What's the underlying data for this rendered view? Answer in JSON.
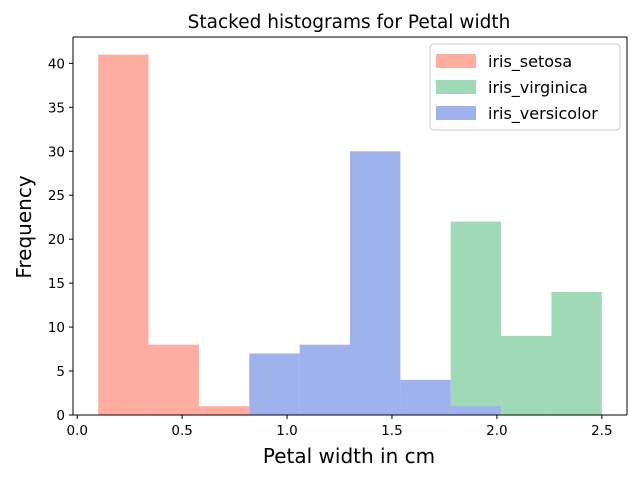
{
  "chart_data": {
    "type": "bar",
    "title": "Stacked histograms for Petal width",
    "xlabel": "Petal width in cm",
    "ylabel": "Frequency",
    "xlim": [
      -0.02,
      2.62
    ],
    "ylim": [
      0,
      43
    ],
    "xticks": [
      0.0,
      0.5,
      1.0,
      1.5,
      2.0,
      2.5
    ],
    "xtick_labels": [
      "0.0",
      "0.5",
      "1.0",
      "1.5",
      "2.0",
      "2.5"
    ],
    "yticks": [
      0,
      5,
      10,
      15,
      20,
      25,
      30,
      35,
      40
    ],
    "ytick_labels": [
      "0",
      "5",
      "10",
      "15",
      "20",
      "25",
      "30",
      "35",
      "40"
    ],
    "bin_edges": [
      0.1,
      0.34,
      0.58,
      0.82,
      1.06,
      1.3,
      1.54,
      1.78,
      2.02,
      2.26,
      2.5
    ],
    "grid": false,
    "legend_position": "top-right",
    "series": [
      {
        "name": "iris_setosa",
        "color": "#FFADA0",
        "values": [
          41,
          8,
          1,
          0,
          0,
          0,
          0,
          0,
          0,
          0
        ]
      },
      {
        "name": "iris_virginica",
        "color": "#9FD9B6",
        "values": [
          0,
          0,
          0,
          0,
          0,
          3,
          2,
          22,
          9,
          14
        ]
      },
      {
        "name": "iris_versicolor",
        "color": "#9FB2ED",
        "values": [
          0,
          0,
          0,
          7,
          8,
          30,
          4,
          1,
          0,
          0
        ]
      }
    ]
  }
}
